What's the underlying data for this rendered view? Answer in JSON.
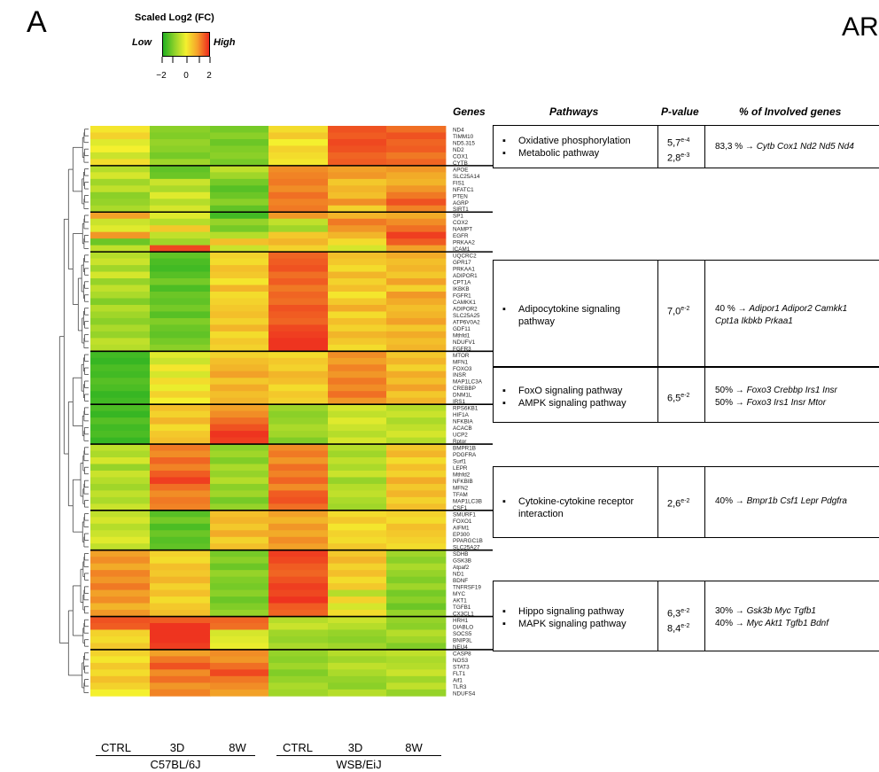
{
  "panel_letter": "A",
  "top_right_fragment": "ARC",
  "legend": {
    "title": "Scaled Log2 (FC)",
    "low_label": "Low",
    "high_label": "High",
    "ticks": [
      "−2",
      "0",
      "2"
    ],
    "colors": [
      "#22b022",
      "#8fd22a",
      "#f4f02e",
      "#f6a02a",
      "#ee2a1e"
    ]
  },
  "table_headers": {
    "genes": "Genes",
    "pathways": "Pathways",
    "pvalue": "P-value",
    "percent": "% of Involved genes"
  },
  "chart_data": {
    "type": "heatmap",
    "columns": [
      "CTRL",
      "3D",
      "8W",
      "CTRL",
      "3D",
      "8W"
    ],
    "strains": [
      {
        "name": "C57BL/6J",
        "columns": [
          "CTRL",
          "3D",
          "8W"
        ]
      },
      {
        "name": "WSB/EiJ",
        "columns": [
          "CTRL",
          "3D",
          "8W"
        ]
      }
    ],
    "color_scale": {
      "min": -2,
      "max": 2,
      "low_color": "#22b022",
      "mid_color": "#f4f02e",
      "high_color": "#ee2a1e"
    },
    "rows": [
      {
        "gene": "ND4",
        "values": [
          0.1,
          -1.0,
          -1.2,
          0.2,
          1.6,
          1.3
        ]
      },
      {
        "gene": "TIMM10",
        "values": [
          0.3,
          -1.1,
          -1.0,
          0.4,
          1.5,
          1.6
        ]
      },
      {
        "gene": "ND5.315",
        "values": [
          -0.2,
          -0.9,
          -1.3,
          0.0,
          1.7,
          1.4
        ]
      },
      {
        "gene": "ND2",
        "values": [
          0.0,
          -1.0,
          -1.1,
          0.3,
          1.6,
          1.5
        ]
      },
      {
        "gene": "COX1",
        "values": [
          -0.4,
          -1.2,
          -1.0,
          0.2,
          1.4,
          1.2
        ]
      },
      {
        "gene": "CYTB",
        "values": [
          0.2,
          -0.8,
          -1.2,
          0.1,
          1.5,
          1.4
        ]
      },
      {
        "gene": "APOE",
        "values": [
          -0.6,
          -1.4,
          -0.5,
          1.0,
          0.8,
          0.9
        ]
      },
      {
        "gene": "SLC25A14",
        "values": [
          -0.3,
          -1.3,
          -0.8,
          1.1,
          0.9,
          0.7
        ]
      },
      {
        "gene": "FIS1",
        "values": [
          -0.8,
          -0.4,
          -1.2,
          1.2,
          0.4,
          0.6
        ]
      },
      {
        "gene": "NFATC1",
        "values": [
          -0.5,
          -0.7,
          -1.5,
          1.0,
          0.6,
          0.9
        ]
      },
      {
        "gene": "PTEN",
        "values": [
          -1.0,
          -0.2,
          -1.3,
          1.3,
          0.5,
          1.2
        ]
      },
      {
        "gene": "AGRP",
        "values": [
          -0.9,
          -0.6,
          -1.0,
          1.1,
          1.0,
          1.6
        ]
      },
      {
        "gene": "SIRT1",
        "values": [
          -0.7,
          -0.3,
          -1.4,
          1.2,
          0.3,
          1.1
        ]
      },
      {
        "gene": "SP1",
        "values": [
          0.8,
          -0.2,
          -1.7,
          0.9,
          0.6,
          0.7
        ]
      },
      {
        "gene": "COX2",
        "values": [
          -0.4,
          -0.6,
          -0.9,
          -0.5,
          1.2,
          1.0
        ]
      },
      {
        "gene": "NAMPT",
        "values": [
          -0.2,
          0.4,
          -1.2,
          -0.8,
          0.9,
          1.3
        ]
      },
      {
        "gene": "EGFR",
        "values": [
          0.9,
          -0.5,
          -0.6,
          0.4,
          0.6,
          1.8
        ]
      },
      {
        "gene": "PRKAA2",
        "values": [
          -1.3,
          -0.8,
          0.5,
          0.6,
          0.2,
          1.5
        ]
      },
      {
        "gene": "ICAM1",
        "values": [
          -0.5,
          1.7,
          -0.4,
          0.3,
          -0.3,
          0.8
        ]
      },
      {
        "gene": "UQCRC2",
        "values": [
          -0.6,
          -1.4,
          0.3,
          1.4,
          0.5,
          0.7
        ]
      },
      {
        "gene": "GPR17",
        "values": [
          -0.4,
          -1.6,
          0.2,
          1.5,
          0.4,
          0.5
        ]
      },
      {
        "gene": "PRKAA1",
        "values": [
          -0.8,
          -1.7,
          0.5,
          1.6,
          0.2,
          0.6
        ]
      },
      {
        "gene": "ADIPOR1",
        "values": [
          -0.3,
          -1.5,
          0.4,
          1.3,
          0.6,
          0.4
        ]
      },
      {
        "gene": "CPT1A",
        "values": [
          -0.9,
          -1.2,
          0.1,
          1.5,
          0.3,
          0.8
        ]
      },
      {
        "gene": "IKBKB",
        "values": [
          -0.5,
          -1.6,
          0.6,
          1.2,
          0.5,
          0.3
        ]
      },
      {
        "gene": "FGFR1",
        "values": [
          -0.7,
          -1.3,
          0.2,
          1.4,
          0.1,
          0.9
        ]
      },
      {
        "gene": "CAMKK1",
        "values": [
          -1.1,
          -1.4,
          0.3,
          1.3,
          0.4,
          0.7
        ]
      },
      {
        "gene": "ADIPOR2",
        "values": [
          -0.6,
          -1.2,
          0.4,
          1.6,
          0.7,
          0.5
        ]
      },
      {
        "gene": "SLC25A25",
        "values": [
          -0.8,
          -1.5,
          0.5,
          1.5,
          0.2,
          0.6
        ]
      },
      {
        "gene": "ATP6V0A2",
        "values": [
          -1.0,
          -1.1,
          0.3,
          1.4,
          0.5,
          0.8
        ]
      },
      {
        "gene": "GDF11",
        "values": [
          -0.7,
          -1.3,
          0.6,
          1.7,
          0.3,
          0.4
        ]
      },
      {
        "gene": "Mthfd1",
        "values": [
          -0.9,
          -1.4,
          0.2,
          1.8,
          0.6,
          0.7
        ]
      },
      {
        "gene": "NDUFV1",
        "values": [
          -0.5,
          -1.2,
          0.4,
          1.9,
          0.4,
          0.5
        ]
      },
      {
        "gene": "FGFR3",
        "values": [
          -0.6,
          -1.0,
          0.3,
          1.9,
          0.2,
          0.6
        ]
      },
      {
        "gene": "MTOR",
        "values": [
          -1.7,
          -0.2,
          0.3,
          0.2,
          1.0,
          0.4
        ]
      },
      {
        "gene": "MFN1",
        "values": [
          -1.8,
          -0.4,
          0.5,
          0.4,
          0.8,
          0.6
        ]
      },
      {
        "gene": "FOXO3",
        "values": [
          -1.6,
          0.1,
          0.6,
          0.3,
          1.1,
          0.3
        ]
      },
      {
        "gene": "INSR",
        "values": [
          -1.7,
          -0.3,
          0.8,
          0.6,
          0.9,
          0.7
        ]
      },
      {
        "gene": "MAP1LC3A",
        "values": [
          -1.5,
          0.2,
          0.4,
          0.5,
          1.2,
          0.5
        ]
      },
      {
        "gene": "CREBBP",
        "values": [
          -1.6,
          -0.1,
          0.7,
          0.2,
          1.0,
          0.8
        ]
      },
      {
        "gene": "DNM1L",
        "values": [
          -1.8,
          0.3,
          0.5,
          0.4,
          1.3,
          0.4
        ]
      },
      {
        "gene": "IRS1",
        "values": [
          -1.7,
          0.0,
          0.6,
          0.3,
          0.9,
          0.6
        ]
      },
      {
        "gene": "RPS6KB1",
        "values": [
          -1.6,
          0.5,
          0.8,
          -0.8,
          -0.3,
          -0.6
        ]
      },
      {
        "gene": "HIF1A",
        "values": [
          -1.8,
          0.3,
          1.0,
          -1.0,
          -0.5,
          -0.4
        ]
      },
      {
        "gene": "NFKBIA",
        "values": [
          -1.5,
          0.6,
          1.3,
          -0.9,
          -0.2,
          -0.7
        ]
      },
      {
        "gene": "ACACB",
        "values": [
          -1.7,
          0.2,
          1.6,
          -0.7,
          -0.4,
          -0.5
        ]
      },
      {
        "gene": "UCP2",
        "values": [
          -1.6,
          0.4,
          1.9,
          -0.8,
          -0.6,
          -0.3
        ]
      },
      {
        "gene": "Rptor",
        "values": [
          -1.8,
          0.5,
          1.8,
          -1.1,
          -0.3,
          -0.6
        ]
      },
      {
        "gene": "BMPR1B",
        "values": [
          -0.5,
          1.2,
          -1.0,
          1.0,
          -0.6,
          0.4
        ]
      },
      {
        "gene": "PDGFRA",
        "values": [
          -0.7,
          1.0,
          -0.8,
          1.2,
          -0.8,
          0.6
        ]
      },
      {
        "gene": "Surf1",
        "values": [
          -0.3,
          1.4,
          -1.1,
          0.9,
          -0.5,
          0.2
        ]
      },
      {
        "gene": "LEPR",
        "values": [
          -0.9,
          1.1,
          -0.7,
          1.3,
          -0.7,
          0.5
        ]
      },
      {
        "gene": "Mthfd2",
        "values": [
          -0.4,
          1.5,
          -0.9,
          1.1,
          -0.4,
          0.3
        ]
      },
      {
        "gene": "NFKBIB",
        "values": [
          -0.6,
          1.8,
          -0.6,
          1.4,
          -0.9,
          0.7
        ]
      },
      {
        "gene": "MFN2",
        "values": [
          -0.8,
          1.3,
          -1.0,
          1.0,
          -0.6,
          0.4
        ]
      },
      {
        "gene": "TFAM",
        "values": [
          -0.5,
          1.0,
          -0.8,
          1.5,
          -0.5,
          0.6
        ]
      },
      {
        "gene": "MAP1LC3B",
        "values": [
          -0.7,
          1.2,
          -1.2,
          1.6,
          -0.7,
          0.3
        ]
      },
      {
        "gene": "CSF1",
        "values": [
          -0.4,
          1.1,
          -0.9,
          1.3,
          -0.8,
          0.5
        ]
      },
      {
        "gene": "SMURF1",
        "values": [
          -0.5,
          -1.5,
          0.5,
          0.8,
          0.2,
          0.3
        ]
      },
      {
        "gene": "FOXO1",
        "values": [
          -0.3,
          -1.2,
          0.6,
          0.6,
          0.4,
          0.2
        ]
      },
      {
        "gene": "AIFM1",
        "values": [
          -0.6,
          -1.6,
          0.4,
          0.9,
          0.1,
          0.5
        ]
      },
      {
        "gene": "EP300",
        "values": [
          -0.4,
          -1.3,
          0.7,
          0.7,
          0.3,
          0.4
        ]
      },
      {
        "gene": "PPARGC1B",
        "values": [
          -0.2,
          -1.5,
          0.3,
          1.0,
          0.2,
          0.3
        ]
      },
      {
        "gene": "SLC25A27",
        "values": [
          -0.5,
          -1.4,
          0.5,
          0.8,
          0.4,
          0.2
        ]
      },
      {
        "gene": "SDHB",
        "values": [
          0.8,
          0.3,
          -1.2,
          1.8,
          0.4,
          -0.8
        ]
      },
      {
        "gene": "GSK3B",
        "values": [
          1.0,
          0.2,
          -1.0,
          1.7,
          0.6,
          -1.0
        ]
      },
      {
        "gene": "Atpaf2",
        "values": [
          0.7,
          0.5,
          -1.3,
          1.5,
          0.3,
          -0.7
        ]
      },
      {
        "gene": "ND1",
        "values": [
          1.1,
          0.4,
          -0.9,
          1.4,
          0.5,
          -0.9
        ]
      },
      {
        "gene": "BDNF",
        "values": [
          0.9,
          0.6,
          -1.1,
          1.6,
          0.2,
          -1.1
        ]
      },
      {
        "gene": "TNFRSF19",
        "values": [
          1.2,
          0.3,
          -1.2,
          1.8,
          0.4,
          -0.8
        ]
      },
      {
        "gene": "MYC",
        "values": [
          0.8,
          0.5,
          -1.0,
          1.7,
          -0.6,
          -1.2
        ]
      },
      {
        "gene": "AKT1",
        "values": [
          1.0,
          0.2,
          -1.3,
          1.9,
          0.3,
          -1.0
        ]
      },
      {
        "gene": "TGFB1",
        "values": [
          0.6,
          0.4,
          -1.1,
          1.5,
          -0.3,
          -1.3
        ]
      },
      {
        "gene": "CX3CL1",
        "values": [
          0.9,
          0.5,
          -0.9,
          1.4,
          0.2,
          -0.9
        ]
      },
      {
        "gene": "HRH1",
        "values": [
          1.6,
          1.5,
          1.4,
          -0.6,
          -0.4,
          -0.9
        ]
      },
      {
        "gene": "DIABLO",
        "values": [
          1.5,
          1.9,
          1.3,
          -0.4,
          -0.6,
          -1.0
        ]
      },
      {
        "gene": "SOCS5",
        "values": [
          0.3,
          1.9,
          -0.3,
          -0.8,
          -0.9,
          -0.6
        ]
      },
      {
        "gene": "BNIP3L",
        "values": [
          0.2,
          1.9,
          -0.2,
          -0.9,
          -1.0,
          -0.8
        ]
      },
      {
        "gene": "NEU4",
        "values": [
          0.4,
          1.8,
          -0.1,
          -0.7,
          -0.8,
          -1.1
        ]
      },
      {
        "gene": "CASP8",
        "values": [
          0.3,
          0.8,
          1.0,
          -0.9,
          -0.6,
          -0.5
        ]
      },
      {
        "gene": "NOS3",
        "values": [
          0.1,
          1.2,
          0.9,
          -1.0,
          -0.8,
          -0.7
        ]
      },
      {
        "gene": "STAT3",
        "values": [
          0.4,
          1.6,
          1.3,
          -0.8,
          -0.5,
          -0.6
        ]
      },
      {
        "gene": "FLT1",
        "values": [
          0.2,
          1.0,
          1.7,
          -1.1,
          -0.7,
          -0.4
        ]
      },
      {
        "gene": "Aif1",
        "values": [
          0.5,
          1.3,
          1.2,
          -0.9,
          -0.9,
          -0.8
        ]
      },
      {
        "gene": "TLR3",
        "values": [
          0.3,
          0.9,
          1.0,
          -0.7,
          -1.0,
          -0.5
        ]
      },
      {
        "gene": "NDUFS4",
        "values": [
          0.0,
          1.1,
          0.8,
          -0.8,
          -0.6,
          -0.9
        ]
      }
    ],
    "cluster_breaks_after_gene": [
      "CYTB",
      "SIRT1",
      "ICAM1",
      "FGFR3",
      "IRS1",
      "Rptor",
      "CSF1",
      "SLC25A27",
      "CX3CL1",
      "NEU4"
    ]
  },
  "pathway_boxes": [
    {
      "pathways": [
        {
          "lines": [
            "Oxidative phosphorylation"
          ]
        },
        {
          "lines": [
            "Metabolic pathway"
          ]
        }
      ],
      "pvalues": [
        {
          "base": "5,7",
          "exp": "e-4"
        },
        {
          "base": "2,8",
          "exp": "e-3"
        }
      ],
      "genes": [
        {
          "percent": "83,3 % →",
          "names": "Cytb Cox1 Nd2 Nd5 Nd4"
        }
      ]
    },
    {
      "pathways": [
        {
          "lines": [
            "Adipocytokine signaling",
            "pathway"
          ]
        }
      ],
      "pvalues": [
        {
          "base": "7,0",
          "exp": "e-2"
        }
      ],
      "genes": [
        {
          "percent": "40 % →",
          "names": "Adipor1 Adipor2 Camkk1",
          "names2": "Cpt1a Ikbkb Prkaa1"
        }
      ]
    },
    {
      "pathways": [
        {
          "lines": [
            "FoxO signaling pathway"
          ]
        },
        {
          "lines": [
            "AMPK signaling pathway"
          ]
        }
      ],
      "pvalues": [
        {
          "base": "6,5",
          "exp": "e-2"
        }
      ],
      "genes": [
        {
          "percent": "50% →",
          "names": "Foxo3 Crebbp Irs1 Insr"
        },
        {
          "percent": "50% →",
          "names": "Foxo3 Irs1 Insr Mtor"
        }
      ]
    },
    {
      "pathways": [
        {
          "lines": [
            "Cytokine-cytokine receptor",
            "interaction"
          ]
        }
      ],
      "pvalues": [
        {
          "base": "2,6",
          "exp": "e-2"
        }
      ],
      "genes": [
        {
          "percent": "40% →",
          "names": "Bmpr1b Csf1 Lepr Pdgfra"
        }
      ]
    },
    {
      "pathways": [
        {
          "lines": [
            "Hippo signaling pathway"
          ]
        },
        {
          "lines": [
            "MAPK signaling pathway"
          ]
        }
      ],
      "pvalues": [
        {
          "base": "6,3",
          "exp": "e-2"
        },
        {
          "base": "8,4",
          "exp": "e-2"
        }
      ],
      "genes": [
        {
          "percent": "30% →",
          "names": "Gsk3b Myc Tgfb1"
        },
        {
          "percent": "40% →",
          "names": "Myc Akt1 Tgfb1 Bdnf"
        }
      ]
    }
  ]
}
